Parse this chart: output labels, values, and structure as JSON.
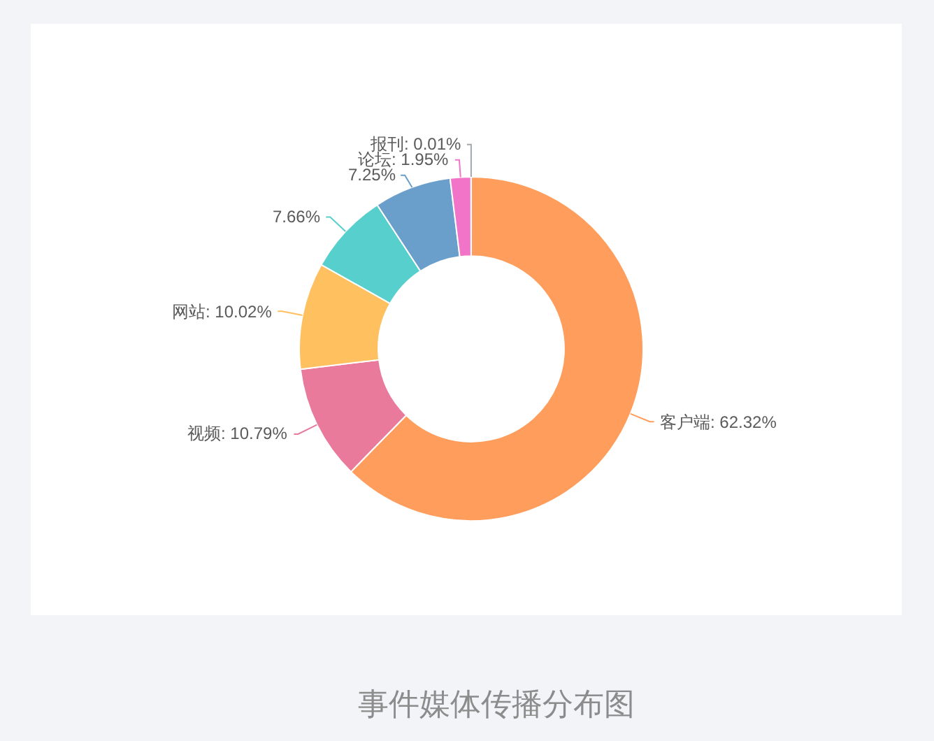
{
  "chart_data": {
    "type": "donut",
    "categories": [
      "客户端",
      "视频",
      "网站",
      null,
      null,
      "论坛",
      "报刊"
    ],
    "values": [
      62.32,
      10.79,
      10.02,
      7.66,
      7.25,
      1.95,
      0.01
    ],
    "colors": [
      "#ff9d5c",
      "#e97a9c",
      "#ffc05f",
      "#57cfcc",
      "#6a9fcb",
      "#f274c9",
      "#a3a8b0"
    ],
    "value_labels": [
      "62.32%",
      "10.79%",
      "10.02%",
      "7.66%",
      "7.25%",
      "1.95%",
      "0.01%"
    ],
    "annotations": [
      "事件媒体传播分布图"
    ]
  }
}
